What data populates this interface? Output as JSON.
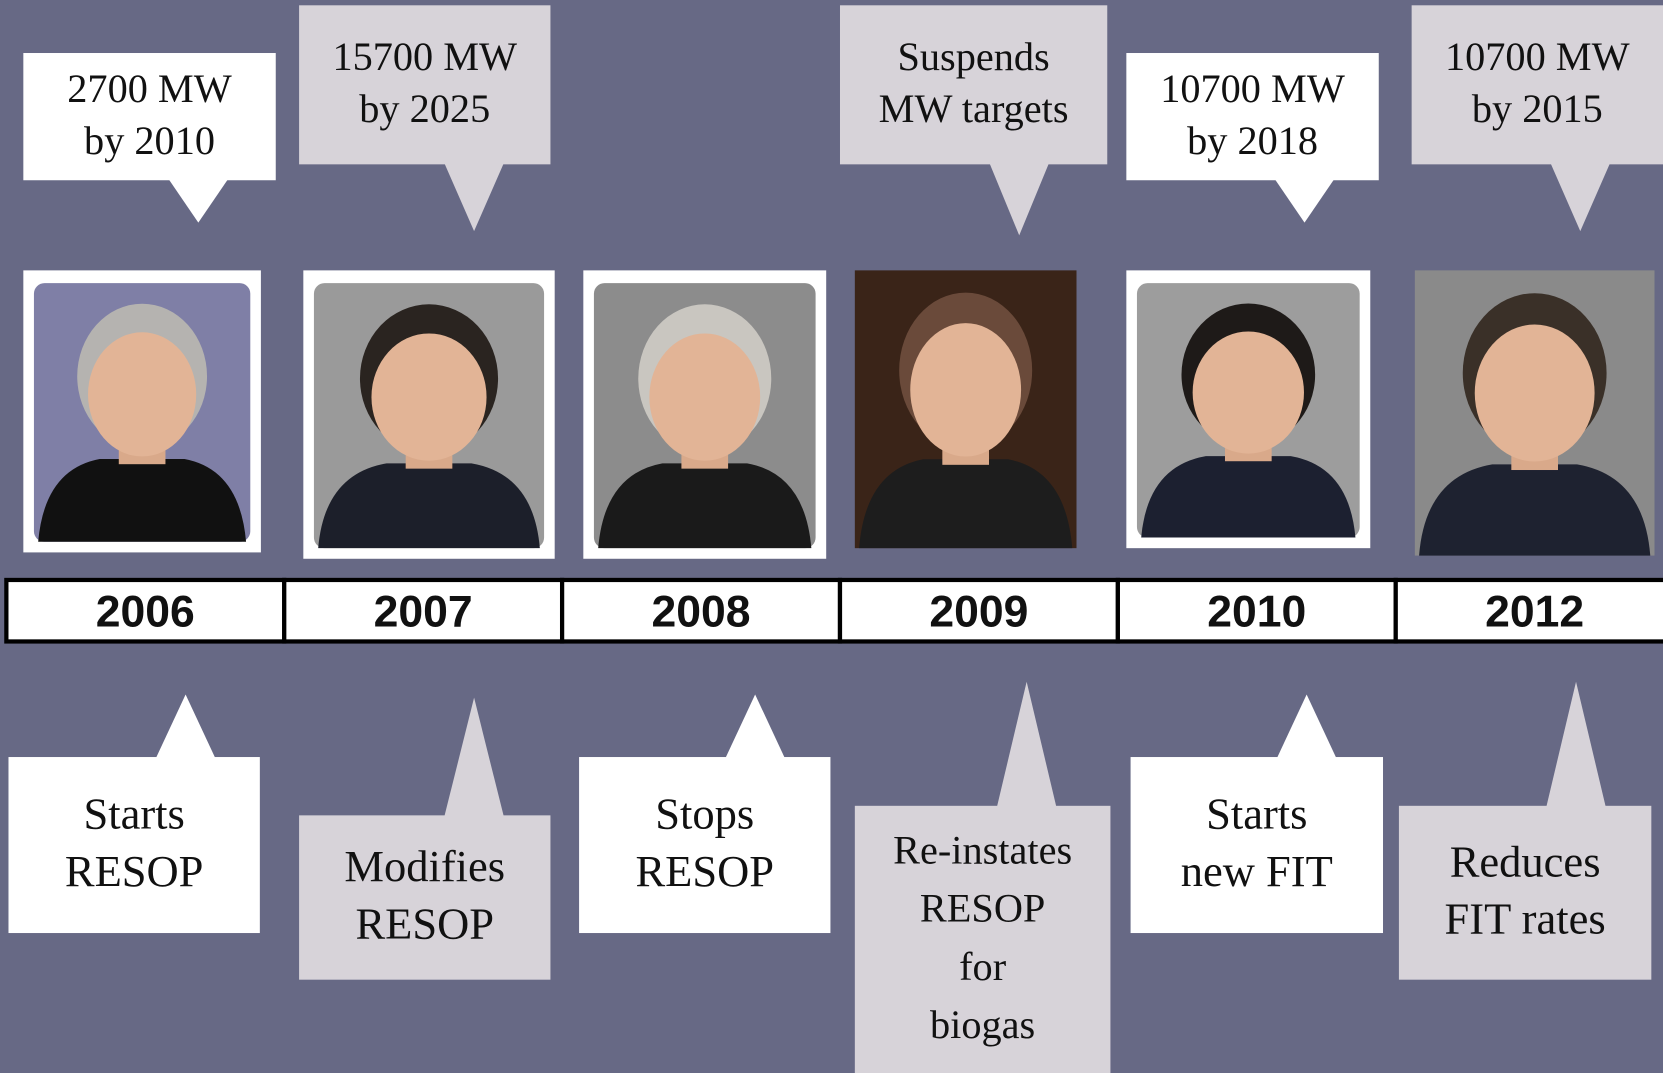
{
  "timeline": [
    {
      "year": "2006",
      "top": [
        "2700 MW",
        "by 2010"
      ],
      "bottom": [
        "Starts",
        "RESOP"
      ]
    },
    {
      "year": "2007",
      "top": [
        "15700 MW",
        "by 2025"
      ],
      "bottom": [
        "Modifies",
        "RESOP"
      ]
    },
    {
      "year": "2008",
      "bottom": [
        "Stops",
        "RESOP"
      ]
    },
    {
      "year": "2009",
      "top": [
        "Suspends",
        "MW targets"
      ],
      "bottom": [
        "Re-instates",
        "RESOP",
        "for",
        "biogas"
      ]
    },
    {
      "year": "2010",
      "top": [
        "10700 MW",
        "by 2018"
      ],
      "bottom": [
        "Starts",
        "new FIT"
      ]
    },
    {
      "year": "2012",
      "top": [
        "10700 MW",
        "by 2015"
      ],
      "bottom": [
        "Reduces",
        "FIT rates"
      ]
    }
  ]
}
